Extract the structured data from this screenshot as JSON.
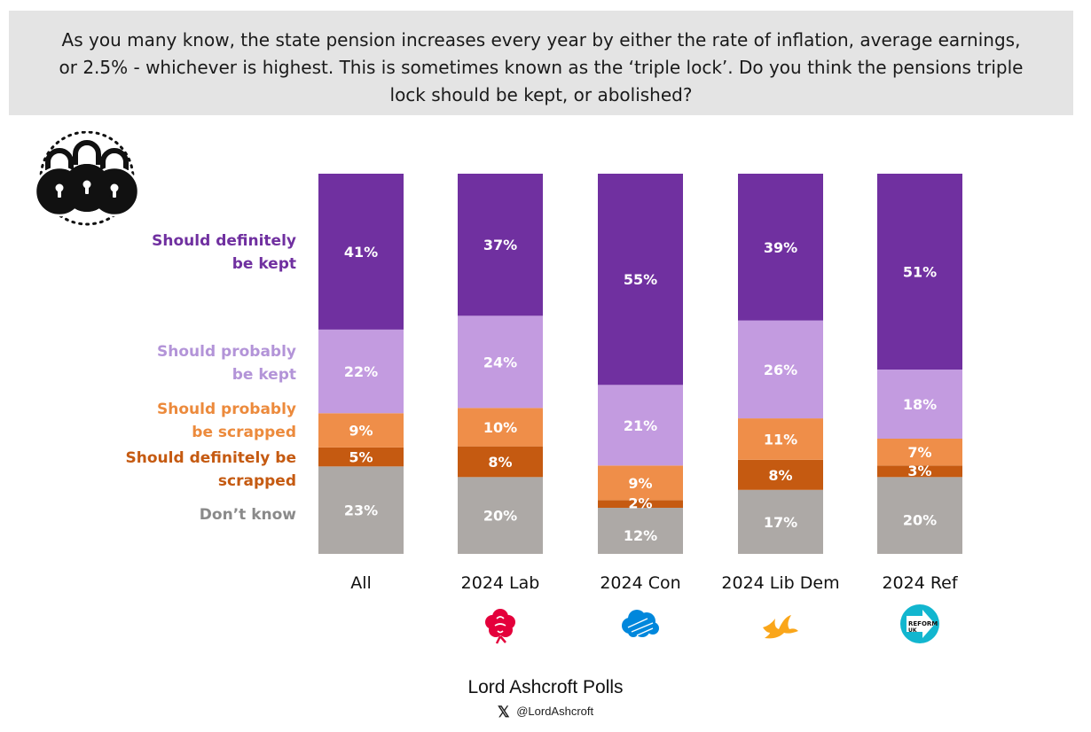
{
  "question": "As you many know, the state pension increases every year by either the rate of inflation, average earnings, or 2.5% - whichever is highest. This is sometimes known as the ‘triple lock’. Do you think the pensions triple lock should be kept, or abolished?",
  "icon": "padlocks-icon",
  "chart_data": {
    "type": "bar",
    "stacked": true,
    "normalized": true,
    "categories": [
      "All",
      "2024 Lab",
      "2024 Con",
      "2024 Lib Dem",
      "2024 Ref"
    ],
    "series": [
      {
        "name": "Don’t know",
        "label_lines": [
          "Don’t know"
        ],
        "color": "#ada9a6",
        "values": [
          23,
          20,
          12,
          17,
          20
        ],
        "labels": [
          "23%",
          "20%",
          "12%",
          "17%",
          "20%"
        ]
      },
      {
        "name": "Should definitely be scrapped",
        "label_lines": [
          "Should definitely be",
          "scrapped"
        ],
        "color": "#c55a11",
        "values": [
          5,
          8,
          2,
          8,
          3
        ],
        "labels": [
          "5%",
          "8%",
          "2%",
          "8%",
          "3%"
        ]
      },
      {
        "name": "Should probably be scrapped",
        "label_lines": [
          "Should probably",
          "be scrapped"
        ],
        "color": "#ef8e49",
        "values": [
          9,
          10,
          9,
          11,
          7
        ],
        "labels": [
          "9%",
          "10%",
          "9%",
          "11%",
          "7%"
        ]
      },
      {
        "name": "Should probably be kept",
        "label_lines": [
          "Should probably",
          "be kept"
        ],
        "color": "#c39be0",
        "values": [
          22,
          24,
          21,
          26,
          18
        ],
        "labels": [
          "22%",
          "24%",
          "21%",
          "26%",
          "18%"
        ]
      },
      {
        "name": "Should definitely be kept",
        "label_lines": [
          "Should definitely",
          "be kept"
        ],
        "color": "#7030a0",
        "values": [
          41,
          37,
          55,
          39,
          51
        ],
        "labels": [
          "41%",
          "37%",
          "55%",
          "39%",
          "51%"
        ]
      }
    ],
    "party_logos": [
      {
        "category": "2024 Lab",
        "icon": "labour-rose-icon",
        "color": "#e4003b"
      },
      {
        "category": "2024 Con",
        "icon": "conservative-tree-icon",
        "color": "#0087dc"
      },
      {
        "category": "2024 Lib Dem",
        "icon": "libdem-bird-icon",
        "color": "#faa61a"
      },
      {
        "category": "2024 Ref",
        "icon": "reform-uk-logo",
        "color": "#12b6cf",
        "text_lines": [
          "REFORM",
          "UK"
        ]
      }
    ]
  },
  "footer": {
    "title": "Lord Ashcroft Polls",
    "x_icon": "𝕏",
    "handle": "@LordAshcroft"
  }
}
